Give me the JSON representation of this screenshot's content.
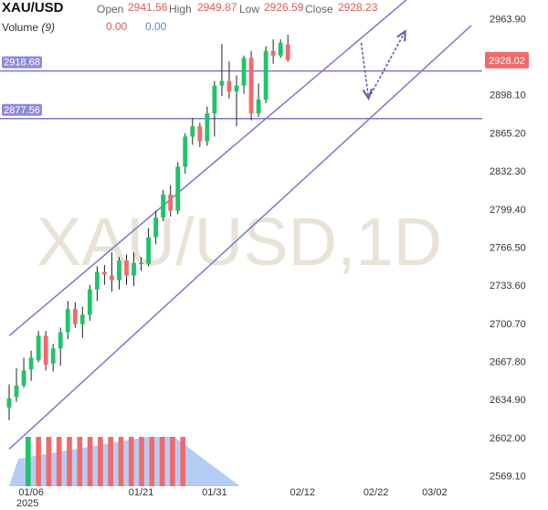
{
  "header": {
    "symbol": "XAU/USD",
    "volume_label": "Volume",
    "volume_param": "(9)",
    "open_label": "Open",
    "open_value": "2941.56",
    "high_label": "High",
    "high_value": "2949.87",
    "low_label": "Low",
    "low_value": "2926.59",
    "close_label": "Close",
    "close_value": "2928.23",
    "volume_values": [
      "0.00",
      "0.00"
    ]
  },
  "watermark": "XAU/USD,1D",
  "colors": {
    "up": "#1fc46a",
    "down": "#ef6b6b",
    "line": "#7b78c8",
    "vol_area": "#a8c4f2",
    "price_tag": "#ef6b6b"
  },
  "chart_data": {
    "type": "candlestick",
    "y_ticks": [
      "2963.90",
      "2931.00",
      "2898.10",
      "2865.20",
      "2832.30",
      "2799.40",
      "2766.50",
      "2733.60",
      "2700.70",
      "2667.80",
      "2634.90",
      "2602.00",
      "2569.10"
    ],
    "x_ticks": [
      {
        "label": "01/06",
        "sublabel": "2025",
        "date": "2025-01-06"
      },
      {
        "label": "01/21",
        "date": "2025-01-21"
      },
      {
        "label": "01/31",
        "date": "2025-01-31"
      },
      {
        "label": "02/12",
        "date": "2025-02-12"
      },
      {
        "label": "02/22",
        "date": "2025-02-22"
      },
      {
        "label": "03/02",
        "date": "2025-03-02"
      }
    ],
    "ylim": [
      2560,
      2980
    ],
    "xlim": [
      "2025-01-03",
      "2025-03-07"
    ],
    "last_price": "2928.02",
    "horizontal_lines": [
      {
        "label": "2918.68",
        "value": 2918.68
      },
      {
        "label": "2877.56",
        "value": 2877.56
      }
    ],
    "channel_lines": [
      {
        "start": [
          "2025-01-03",
          2690
        ],
        "end": [
          "2025-02-28",
          2990
        ]
      },
      {
        "start": [
          "2025-01-03",
          2592
        ],
        "end": [
          "2025-03-07",
          2958
        ]
      }
    ],
    "arrows": [
      {
        "from": [
          "2025-02-20",
          2943
        ],
        "to": [
          "2025-02-21",
          2895
        ]
      },
      {
        "from": [
          "2025-02-21",
          2895
        ],
        "to": [
          "2025-02-26",
          2953
        ]
      }
    ],
    "candles": [
      {
        "date": "2025-01-03",
        "open": 2628,
        "high": 2648,
        "low": 2617,
        "close": 2636
      },
      {
        "date": "2025-01-04",
        "open": 2637,
        "high": 2662,
        "low": 2633,
        "close": 2647
      },
      {
        "date": "2025-01-05",
        "open": 2647,
        "high": 2671,
        "low": 2645,
        "close": 2660
      },
      {
        "date": "2025-01-06",
        "open": 2661,
        "high": 2677,
        "low": 2651,
        "close": 2671
      },
      {
        "date": "2025-01-07",
        "open": 2669,
        "high": 2694,
        "low": 2667,
        "close": 2690
      },
      {
        "date": "2025-01-08",
        "open": 2690,
        "high": 2694,
        "low": 2660,
        "close": 2665
      },
      {
        "date": "2025-01-09",
        "open": 2666,
        "high": 2683,
        "low": 2659,
        "close": 2679
      },
      {
        "date": "2025-01-10",
        "open": 2679,
        "high": 2697,
        "low": 2664,
        "close": 2693
      },
      {
        "date": "2025-01-11",
        "open": 2693,
        "high": 2720,
        "low": 2687,
        "close": 2713
      },
      {
        "date": "2025-01-12",
        "open": 2713,
        "high": 2719,
        "low": 2697,
        "close": 2700
      },
      {
        "date": "2025-01-13",
        "open": 2700,
        "high": 2715,
        "low": 2688,
        "close": 2708
      },
      {
        "date": "2025-01-14",
        "open": 2708,
        "high": 2734,
        "low": 2703,
        "close": 2730
      },
      {
        "date": "2025-01-15",
        "open": 2730,
        "high": 2750,
        "low": 2720,
        "close": 2745
      },
      {
        "date": "2025-01-16",
        "open": 2745,
        "high": 2751,
        "low": 2734,
        "close": 2743
      },
      {
        "date": "2025-01-17",
        "open": 2742,
        "high": 2762,
        "low": 2728,
        "close": 2738
      },
      {
        "date": "2025-01-18",
        "open": 2738,
        "high": 2758,
        "low": 2730,
        "close": 2755
      },
      {
        "date": "2025-01-19",
        "open": 2755,
        "high": 2760,
        "low": 2734,
        "close": 2742
      },
      {
        "date": "2025-01-20",
        "open": 2742,
        "high": 2762,
        "low": 2733,
        "close": 2753
      },
      {
        "date": "2025-01-21",
        "open": 2753,
        "high": 2758,
        "low": 2746,
        "close": 2753
      },
      {
        "date": "2025-01-22",
        "open": 2752,
        "high": 2783,
        "low": 2750,
        "close": 2775
      },
      {
        "date": "2025-01-23",
        "open": 2775,
        "high": 2798,
        "low": 2769,
        "close": 2792
      },
      {
        "date": "2025-01-24",
        "open": 2792,
        "high": 2816,
        "low": 2789,
        "close": 2812
      },
      {
        "date": "2025-01-25",
        "open": 2812,
        "high": 2820,
        "low": 2793,
        "close": 2798
      },
      {
        "date": "2025-01-26",
        "open": 2798,
        "high": 2840,
        "low": 2795,
        "close": 2836
      },
      {
        "date": "2025-01-27",
        "open": 2836,
        "high": 2865,
        "low": 2830,
        "close": 2862
      },
      {
        "date": "2025-01-28",
        "open": 2862,
        "high": 2878,
        "low": 2855,
        "close": 2871
      },
      {
        "date": "2025-01-29",
        "open": 2871,
        "high": 2874,
        "low": 2853,
        "close": 2858
      },
      {
        "date": "2025-01-30",
        "open": 2858,
        "high": 2888,
        "low": 2854,
        "close": 2882
      },
      {
        "date": "2025-01-31",
        "open": 2882,
        "high": 2910,
        "low": 2862,
        "close": 2906
      },
      {
        "date": "2025-02-01",
        "open": 2906,
        "high": 2942,
        "low": 2897,
        "close": 2910
      },
      {
        "date": "2025-02-02",
        "open": 2910,
        "high": 2927,
        "low": 2895,
        "close": 2901
      },
      {
        "date": "2025-02-03",
        "open": 2901,
        "high": 2915,
        "low": 2871,
        "close": 2906
      },
      {
        "date": "2025-02-04",
        "open": 2906,
        "high": 2932,
        "low": 2899,
        "close": 2930
      },
      {
        "date": "2025-02-05",
        "open": 2930,
        "high": 2936,
        "low": 2876,
        "close": 2882
      },
      {
        "date": "2025-02-06",
        "open": 2882,
        "high": 2908,
        "low": 2879,
        "close": 2894
      },
      {
        "date": "2025-02-07",
        "open": 2894,
        "high": 2940,
        "low": 2891,
        "close": 2936
      },
      {
        "date": "2025-02-08",
        "open": 2936,
        "high": 2946,
        "low": 2925,
        "close": 2932
      },
      {
        "date": "2025-02-09",
        "open": 2932,
        "high": 2946,
        "low": 2930,
        "close": 2943
      },
      {
        "date": "2025-02-10",
        "open": 2941.56,
        "high": 2949.87,
        "low": 2926.59,
        "close": 2928.23
      }
    ],
    "volume": {
      "bars": [
        "up",
        "down",
        "down",
        "down",
        "down",
        "down",
        "down",
        "down",
        "down",
        "down",
        "down",
        "down",
        "down",
        "down",
        "down",
        "down"
      ],
      "bars_start": "2025-01-03",
      "area_start": "2025-01-03",
      "area_peak": "2025-01-24",
      "area_end": "2025-02-01"
    }
  }
}
